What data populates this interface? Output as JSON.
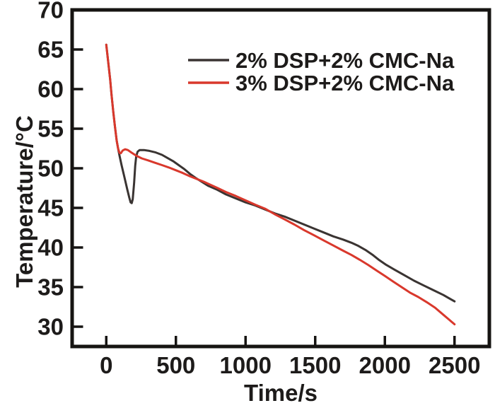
{
  "figure": {
    "background": "#ffffff",
    "frame_color": "#161412",
    "text_color": "#1d1b1a"
  },
  "chart_data": {
    "type": "line",
    "title": "",
    "xlabel": "Time/s",
    "ylabel": "Temperature/°C",
    "xlim": [
      -245,
      2750
    ],
    "ylim": [
      27.5,
      70
    ],
    "xticks": [
      0,
      500,
      1000,
      1500,
      2000,
      2500
    ],
    "yticks": [
      30,
      35,
      40,
      45,
      50,
      55,
      60,
      65,
      70
    ],
    "grid": false,
    "legend_position": "upper-right-inside",
    "series": [
      {
        "name": "2% DSP+2% CMC-Na",
        "color": "#3a3432",
        "points": [
          [
            0,
            65.6
          ],
          [
            8,
            64.4
          ],
          [
            18,
            62.8
          ],
          [
            28,
            61.2
          ],
          [
            38,
            59.3
          ],
          [
            50,
            57.2
          ],
          [
            62,
            55.3
          ],
          [
            75,
            53.5
          ],
          [
            85,
            52.5
          ],
          [
            95,
            51.6
          ],
          [
            110,
            50.4
          ],
          [
            130,
            48.9
          ],
          [
            150,
            47.4
          ],
          [
            165,
            46.3
          ],
          [
            175,
            45.7
          ],
          [
            183,
            45.6
          ],
          [
            190,
            46.1
          ],
          [
            200,
            48.2
          ],
          [
            208,
            50.3
          ],
          [
            215,
            51.5
          ],
          [
            225,
            52.1
          ],
          [
            240,
            52.3
          ],
          [
            270,
            52.3
          ],
          [
            310,
            52.2
          ],
          [
            355,
            52.0
          ],
          [
            400,
            51.7
          ],
          [
            440,
            51.3
          ],
          [
            480,
            50.9
          ],
          [
            520,
            50.4
          ],
          [
            560,
            49.9
          ],
          [
            600,
            49.3
          ],
          [
            640,
            48.8
          ],
          [
            685,
            48.3
          ],
          [
            730,
            47.8
          ],
          [
            790,
            47.35
          ],
          [
            860,
            46.7
          ],
          [
            930,
            46.2
          ],
          [
            1000,
            45.7
          ],
          [
            1070,
            45.3
          ],
          [
            1140,
            44.8
          ],
          [
            1210,
            44.3
          ],
          [
            1280,
            43.9
          ],
          [
            1350,
            43.4
          ],
          [
            1420,
            42.9
          ],
          [
            1490,
            42.4
          ],
          [
            1560,
            41.9
          ],
          [
            1630,
            41.4
          ],
          [
            1700,
            41.0
          ],
          [
            1760,
            40.6
          ],
          [
            1810,
            40.2
          ],
          [
            1860,
            39.7
          ],
          [
            1910,
            39.1
          ],
          [
            1960,
            38.4
          ],
          [
            2010,
            37.8
          ],
          [
            2070,
            37.2
          ],
          [
            2140,
            36.5
          ],
          [
            2210,
            35.8
          ],
          [
            2280,
            35.2
          ],
          [
            2350,
            34.6
          ],
          [
            2420,
            34.0
          ],
          [
            2470,
            33.5
          ],
          [
            2500,
            33.2
          ]
        ]
      },
      {
        "name": "3% DSP+2% CMC-Na",
        "color": "#d9382c",
        "points": [
          [
            0,
            65.6
          ],
          [
            8,
            64.4
          ],
          [
            18,
            62.8
          ],
          [
            28,
            61.2
          ],
          [
            38,
            59.3
          ],
          [
            50,
            57.2
          ],
          [
            62,
            55.3
          ],
          [
            75,
            53.5
          ],
          [
            85,
            52.5
          ],
          [
            95,
            51.95
          ],
          [
            105,
            51.9
          ],
          [
            118,
            52.25
          ],
          [
            135,
            52.4
          ],
          [
            155,
            52.3
          ],
          [
            180,
            52.0
          ],
          [
            215,
            51.6
          ],
          [
            255,
            51.25
          ],
          [
            300,
            51.0
          ],
          [
            350,
            50.7
          ],
          [
            400,
            50.4
          ],
          [
            450,
            50.1
          ],
          [
            500,
            49.75
          ],
          [
            550,
            49.4
          ],
          [
            600,
            49.0
          ],
          [
            650,
            48.65
          ],
          [
            700,
            48.3
          ],
          [
            750,
            47.9
          ],
          [
            800,
            47.5
          ],
          [
            860,
            47.0
          ],
          [
            930,
            46.5
          ],
          [
            1000,
            45.95
          ],
          [
            1070,
            45.4
          ],
          [
            1140,
            44.9
          ],
          [
            1210,
            44.2
          ],
          [
            1280,
            43.55
          ],
          [
            1350,
            42.9
          ],
          [
            1420,
            42.2
          ],
          [
            1490,
            41.55
          ],
          [
            1560,
            40.9
          ],
          [
            1630,
            40.25
          ],
          [
            1700,
            39.6
          ],
          [
            1760,
            39.05
          ],
          [
            1820,
            38.45
          ],
          [
            1880,
            37.8
          ],
          [
            1940,
            37.1
          ],
          [
            2000,
            36.4
          ],
          [
            2060,
            35.7
          ],
          [
            2120,
            35.0
          ],
          [
            2180,
            34.3
          ],
          [
            2240,
            33.75
          ],
          [
            2300,
            33.1
          ],
          [
            2360,
            32.4
          ],
          [
            2420,
            31.5
          ],
          [
            2460,
            30.9
          ],
          [
            2500,
            30.3
          ]
        ]
      }
    ]
  }
}
